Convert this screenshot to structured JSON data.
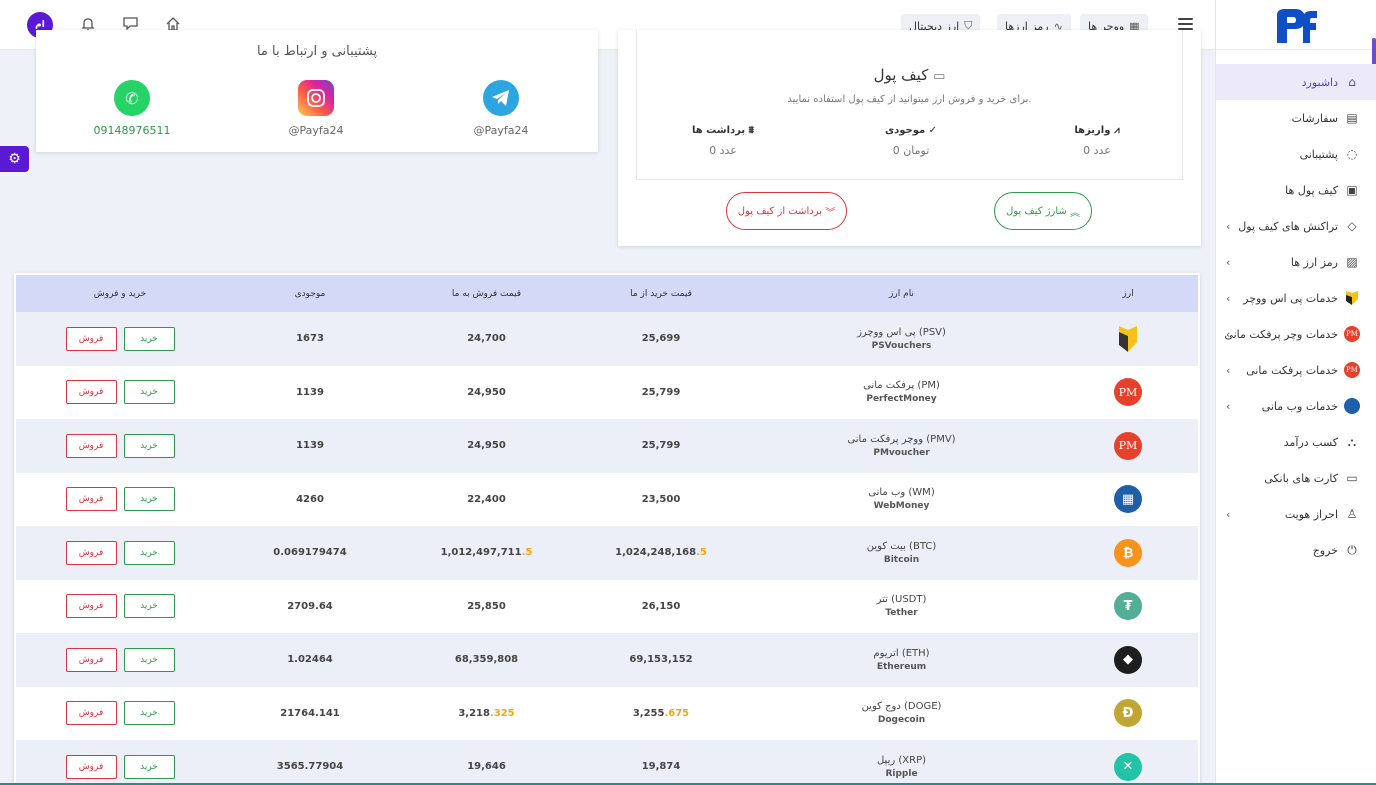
{
  "topbar": {
    "avatar_text": "ام",
    "chips": [
      {
        "label": "ووچر ها",
        "icon": "grid-icon"
      },
      {
        "label": "رمز ارزها",
        "icon": "pulse-icon"
      },
      {
        "label": "ارز دیجیتال",
        "icon": "shield-icon"
      }
    ]
  },
  "sidebar": {
    "items": [
      {
        "label": "داشبورد",
        "icon": "home-icon",
        "active": true,
        "chevron": false
      },
      {
        "label": "سفارشات",
        "icon": "document-icon",
        "chevron": false
      },
      {
        "label": "پشتیبانی",
        "icon": "chat-icon",
        "chevron": false
      },
      {
        "label": "کیف پول ها",
        "icon": "wallet-icon",
        "chevron": false
      },
      {
        "label": "تراکنش های کیف پول",
        "icon": "tag-icon",
        "chevron": true
      },
      {
        "label": "رمز ارز ها",
        "icon": "chart-icon",
        "chevron": true
      },
      {
        "label": "خدمات پی اس ووچر",
        "icon": "psvoucher-icon",
        "chevron": true
      },
      {
        "label": "خدمات وچر پرفکت مانی",
        "icon": "pm-icon",
        "chevron": true
      },
      {
        "label": "خدمات پرفکت مانی",
        "icon": "pm-icon",
        "chevron": true
      },
      {
        "label": "خدمات وب مانی",
        "icon": "webmoney-icon",
        "chevron": true
      },
      {
        "label": "کسب درآمد",
        "icon": "network-icon",
        "chevron": false
      },
      {
        "label": "کارت های بانکی",
        "icon": "card-icon",
        "chevron": false
      },
      {
        "label": "احراز هویت",
        "icon": "user-icon",
        "chevron": true
      },
      {
        "label": "خروج",
        "icon": "power-icon",
        "chevron": false
      }
    ]
  },
  "support": {
    "title": "پشتیبانی و ارتباط با ما",
    "socials": [
      {
        "name": "whatsapp",
        "text": "09148976511",
        "color": "#25d366"
      },
      {
        "name": "instagram",
        "text": "@Payfa24",
        "color": "#d6249f"
      },
      {
        "name": "telegram",
        "text": "@Payfa24",
        "color": "#2ca5e0"
      }
    ]
  },
  "wallet": {
    "title": "کیف پول",
    "subtitle": "برای خرید و فروش ارز میتوانید از کیف پول استفاده نمایید.",
    "stats": [
      {
        "label": "برداشت ها",
        "value": "0 عدد"
      },
      {
        "label": "موجودی",
        "value": "0 تومان"
      },
      {
        "label": "واریزها",
        "value": "0 عدد"
      }
    ],
    "withdraw_label": "برداشت از کیف پول",
    "charge_label": "شارژ کیف پول"
  },
  "table": {
    "headers": {
      "currency": "ارز",
      "name": "نام ارز",
      "buy_price": "قیمت خرید از ما",
      "sell_price": "قیمت فروش به ما",
      "stock": "موجودی",
      "actions": "خرید و فروش"
    },
    "buy_label": "خرید",
    "sell_label": "فروش",
    "rows": [
      {
        "fa": "پی اس ووچرز (PSV)",
        "en": "PSVouchers",
        "buy": "25,699",
        "sell": "24,700",
        "stock": "1673",
        "icon": "psvoucher-icon",
        "color": "#333333",
        "glyph": ""
      },
      {
        "fa": "پرفکت مانی (PM)",
        "en": "PerfectMoney",
        "buy": "25,799",
        "sell": "24,950",
        "stock": "1139",
        "icon": "pm-icon",
        "color": "#e8412b",
        "glyph": "PM"
      },
      {
        "fa": "ووچر پرفکت مانی (PMV)",
        "en": "PMvoucher",
        "buy": "25,799",
        "sell": "24,950",
        "stock": "1139",
        "icon": "pm-icon",
        "color": "#e8412b",
        "glyph": "PM"
      },
      {
        "fa": "وب مانی (WM)",
        "en": "WebMoney",
        "buy": "23,500",
        "sell": "22,400",
        "stock": "4260",
        "icon": "webmoney-icon",
        "color": "#1e5fa8",
        "glyph": "▦"
      },
      {
        "fa": "بیت کوین (BTC)",
        "en": "Bitcoin",
        "buy": "1,024,248,168",
        "buy_hl": ".5",
        "sell": "1,012,497,711",
        "sell_hl": ".5",
        "stock": "0.069179474",
        "icon": "bitcoin-icon",
        "color": "#f7931a",
        "glyph": "₿"
      },
      {
        "fa": "تتر (USDT)",
        "en": "Tether",
        "buy": "26,150",
        "sell": "25,850",
        "stock": "2709.64",
        "icon": "tether-icon",
        "color": "#50af95",
        "glyph": "₮"
      },
      {
        "fa": "اتریوم (ETH)",
        "en": "Ethereum",
        "buy": "69,153,152",
        "sell": "68,359,808",
        "stock": "1.02464",
        "icon": "ethereum-icon",
        "color": "#1e1e1e",
        "glyph": "◆"
      },
      {
        "fa": "دوج کوین (DOGE)",
        "en": "Dogecoin",
        "buy": "3,255",
        "buy_hl": ".675",
        "sell": "3,218",
        "sell_hl": ".325",
        "stock": "21764.141",
        "icon": "dogecoin-icon",
        "color": "#c2a633",
        "glyph": "Ð"
      },
      {
        "fa": "ریپل (XRP)",
        "en": "Ripple",
        "buy": "19,874",
        "sell": "19,646",
        "stock": "3565.77904",
        "icon": "ripple-icon",
        "color": "#23c3a6",
        "glyph": "✕"
      }
    ]
  }
}
